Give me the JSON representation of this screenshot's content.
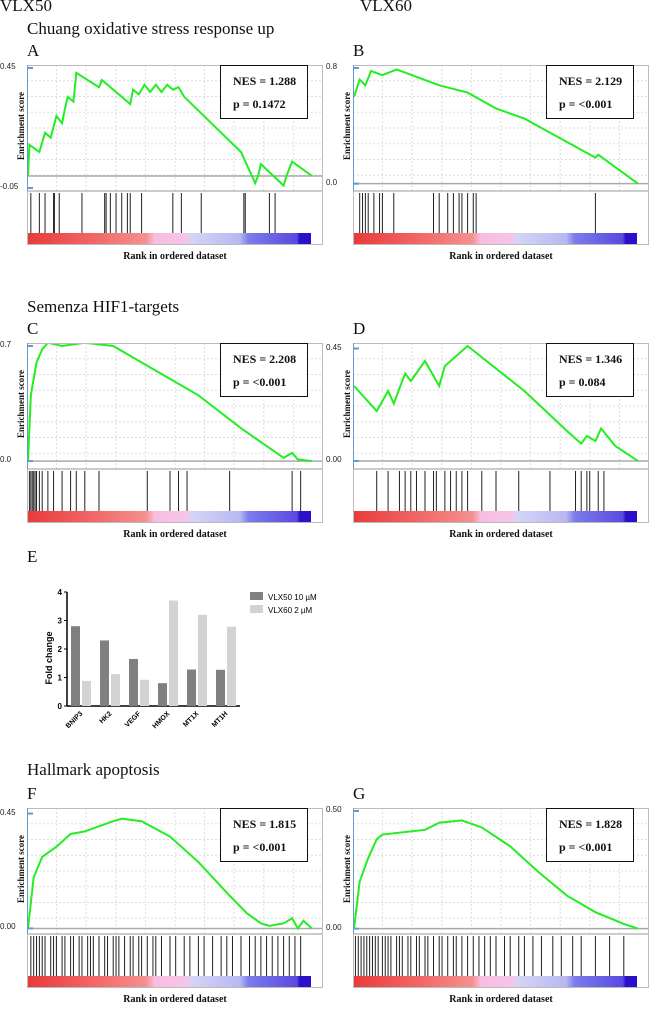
{
  "headers": {
    "vlx50": "VLX50",
    "vlx60": "VLX60",
    "row1": "Chuang oxidative stress response up",
    "row2": "Semenza HIF1-targets",
    "row3": "Hallmark apoptosis"
  },
  "axis": {
    "ylabel": "Enrichment score",
    "xlabel": "Rank in ordered dataset"
  },
  "chart_data": [
    {
      "type": "line",
      "panel": "A",
      "nes": "NES = 1.288",
      "p": "p = 0.1472",
      "ylim": [
        -0.05,
        0.45
      ],
      "yticks": [
        "0.45",
        "-0.05"
      ],
      "yticks_v": [
        0.45,
        -0.05
      ],
      "curve": [
        [
          0,
          0
        ],
        [
          0.005,
          0.13
        ],
        [
          0.04,
          0.1
        ],
        [
          0.06,
          0.18
        ],
        [
          0.08,
          0.16
        ],
        [
          0.1,
          0.25
        ],
        [
          0.12,
          0.22
        ],
        [
          0.13,
          0.28
        ],
        [
          0.14,
          0.33
        ],
        [
          0.16,
          0.31
        ],
        [
          0.17,
          0.43
        ],
        [
          0.25,
          0.37
        ],
        [
          0.26,
          0.4
        ],
        [
          0.36,
          0.3
        ],
        [
          0.37,
          0.36
        ],
        [
          0.39,
          0.34
        ],
        [
          0.41,
          0.38
        ],
        [
          0.43,
          0.35
        ],
        [
          0.45,
          0.38
        ],
        [
          0.47,
          0.35
        ],
        [
          0.49,
          0.38
        ],
        [
          0.51,
          0.36
        ],
        [
          0.53,
          0.37
        ],
        [
          0.55,
          0.33
        ],
        [
          0.75,
          0.1
        ],
        [
          0.8,
          -0.03
        ],
        [
          0.81,
          0.0
        ],
        [
          0.82,
          0.05
        ],
        [
          0.9,
          -0.04
        ],
        [
          0.91,
          0.0
        ],
        [
          0.92,
          0.03
        ],
        [
          0.93,
          0.06
        ],
        [
          1,
          0
        ]
      ],
      "hits": [
        0.01,
        0.04,
        0.06,
        0.09,
        0.093,
        0.11,
        0.19,
        0.27,
        0.275,
        0.29,
        0.31,
        0.33,
        0.35,
        0.36,
        0.4,
        0.51,
        0.54,
        0.61,
        0.76,
        0.765,
        0.85,
        0.87
      ]
    },
    {
      "type": "line",
      "panel": "B",
      "nes": "NES = 2.129",
      "p": "p = <0.001",
      "ylim": [
        -0.03,
        0.8
      ],
      "yticks": [
        "0.8",
        "0.0"
      ],
      "yticks_v": [
        0.8,
        0
      ],
      "curve": [
        [
          0,
          0.6
        ],
        [
          0.02,
          0.72
        ],
        [
          0.04,
          0.68
        ],
        [
          0.06,
          0.78
        ],
        [
          0.1,
          0.75
        ],
        [
          0.15,
          0.79
        ],
        [
          0.3,
          0.68
        ],
        [
          0.4,
          0.63
        ],
        [
          0.5,
          0.52
        ],
        [
          0.6,
          0.45
        ],
        [
          0.85,
          0.18
        ],
        [
          0.86,
          0.2
        ],
        [
          1,
          0
        ]
      ],
      "hits": [
        0.02,
        0.03,
        0.04,
        0.05,
        0.07,
        0.09,
        0.1,
        0.14,
        0.28,
        0.3,
        0.33,
        0.35,
        0.37,
        0.38,
        0.4,
        0.42,
        0.43,
        0.85
      ]
    },
    {
      "type": "line",
      "panel": "C",
      "nes": "NES = 2.208",
      "p": "p = <0.001",
      "ylim": [
        -0.03,
        0.7
      ],
      "yticks": [
        "0.7",
        "0.0"
      ],
      "yticks_v": [
        0.7,
        0
      ],
      "curve": [
        [
          0,
          0
        ],
        [
          0.01,
          0.4
        ],
        [
          0.03,
          0.6
        ],
        [
          0.05,
          0.68
        ],
        [
          0.07,
          0.72
        ],
        [
          0.12,
          0.7
        ],
        [
          0.2,
          0.72
        ],
        [
          0.3,
          0.7
        ],
        [
          0.42,
          0.58
        ],
        [
          0.6,
          0.4
        ],
        [
          0.75,
          0.2
        ],
        [
          0.9,
          0.02
        ],
        [
          0.93,
          0.05
        ],
        [
          0.95,
          0.01
        ],
        [
          1,
          0
        ]
      ],
      "hits": [
        0.005,
        0.01,
        0.015,
        0.02,
        0.025,
        0.03,
        0.04,
        0.05,
        0.07,
        0.09,
        0.12,
        0.15,
        0.17,
        0.2,
        0.25,
        0.42,
        0.5,
        0.53,
        0.56,
        0.71,
        0.93,
        0.96
      ]
    },
    {
      "type": "line",
      "panel": "D",
      "nes": "NES = 1.346",
      "p": "p = 0.084",
      "ylim": [
        -0.02,
        0.46
      ],
      "yticks": [
        "0.45",
        "0.00"
      ],
      "yticks_v": [
        0.45,
        0
      ],
      "curve": [
        [
          0,
          0.3
        ],
        [
          0.08,
          0.2
        ],
        [
          0.12,
          0.28
        ],
        [
          0.14,
          0.23
        ],
        [
          0.18,
          0.35
        ],
        [
          0.2,
          0.32
        ],
        [
          0.25,
          0.4
        ],
        [
          0.3,
          0.3
        ],
        [
          0.32,
          0.38
        ],
        [
          0.38,
          0.44
        ],
        [
          0.4,
          0.46
        ],
        [
          0.6,
          0.28
        ],
        [
          0.75,
          0.12
        ],
        [
          0.8,
          0.07
        ],
        [
          0.82,
          0.1
        ],
        [
          0.85,
          0.08
        ],
        [
          0.87,
          0.13
        ],
        [
          0.92,
          0.06
        ],
        [
          1,
          0
        ]
      ],
      "hits": [
        0.08,
        0.12,
        0.16,
        0.18,
        0.2,
        0.22,
        0.25,
        0.28,
        0.29,
        0.32,
        0.34,
        0.36,
        0.38,
        0.4,
        0.45,
        0.5,
        0.58,
        0.69,
        0.78,
        0.8,
        0.82,
        0.83,
        0.86,
        0.88
      ]
    },
    {
      "type": "line",
      "panel": "F",
      "nes": "NES = 1.815",
      "p": "p = <0.001",
      "ylim": [
        -0.01,
        0.46
      ],
      "yticks": [
        "0.45",
        "0.00"
      ],
      "yticks_v": [
        0.45,
        0
      ],
      "curve": [
        [
          0,
          0
        ],
        [
          0.02,
          0.2
        ],
        [
          0.05,
          0.28
        ],
        [
          0.1,
          0.32
        ],
        [
          0.15,
          0.37
        ],
        [
          0.2,
          0.38
        ],
        [
          0.3,
          0.42
        ],
        [
          0.33,
          0.43
        ],
        [
          0.4,
          0.42
        ],
        [
          0.5,
          0.36
        ],
        [
          0.6,
          0.26
        ],
        [
          0.7,
          0.14
        ],
        [
          0.77,
          0.06
        ],
        [
          0.82,
          0.02
        ],
        [
          0.85,
          0.01
        ],
        [
          0.9,
          0.02
        ],
        [
          0.93,
          0.04
        ],
        [
          0.95,
          0
        ],
        [
          0.97,
          0.03
        ],
        [
          1,
          0
        ]
      ],
      "hits": [
        0.01,
        0.02,
        0.03,
        0.04,
        0.05,
        0.06,
        0.08,
        0.09,
        0.1,
        0.12,
        0.13,
        0.15,
        0.16,
        0.18,
        0.19,
        0.21,
        0.22,
        0.23,
        0.25,
        0.27,
        0.28,
        0.3,
        0.31,
        0.32,
        0.34,
        0.36,
        0.37,
        0.39,
        0.4,
        0.42,
        0.44,
        0.45,
        0.47,
        0.5,
        0.52,
        0.55,
        0.57,
        0.6,
        0.62,
        0.65,
        0.68,
        0.7,
        0.72,
        0.75,
        0.78,
        0.8,
        0.82,
        0.84,
        0.86,
        0.88,
        0.9,
        0.92,
        0.94,
        0.96
      ]
    },
    {
      "type": "line",
      "panel": "G",
      "nes": "NES = 1.828",
      "p": "p = <0.001",
      "ylim": [
        -0.01,
        0.5
      ],
      "yticks": [
        "0.50",
        "0.00"
      ],
      "yticks_v": [
        0.5,
        0
      ],
      "curve": [
        [
          0,
          0
        ],
        [
          0.02,
          0.2
        ],
        [
          0.05,
          0.3
        ],
        [
          0.08,
          0.38
        ],
        [
          0.1,
          0.4
        ],
        [
          0.25,
          0.42
        ],
        [
          0.3,
          0.45
        ],
        [
          0.38,
          0.46
        ],
        [
          0.45,
          0.43
        ],
        [
          0.55,
          0.35
        ],
        [
          0.65,
          0.24
        ],
        [
          0.75,
          0.14
        ],
        [
          0.85,
          0.07
        ],
        [
          0.95,
          0.02
        ],
        [
          1,
          0
        ]
      ],
      "hits": [
        0.005,
        0.015,
        0.025,
        0.035,
        0.045,
        0.055,
        0.065,
        0.075,
        0.085,
        0.1,
        0.11,
        0.12,
        0.13,
        0.15,
        0.16,
        0.17,
        0.19,
        0.2,
        0.22,
        0.23,
        0.25,
        0.26,
        0.28,
        0.3,
        0.31,
        0.33,
        0.35,
        0.36,
        0.38,
        0.4,
        0.42,
        0.44,
        0.46,
        0.48,
        0.5,
        0.53,
        0.55,
        0.58,
        0.6,
        0.63,
        0.66,
        0.7,
        0.73,
        0.77,
        0.8,
        0.85,
        0.9,
        0.95
      ]
    },
    {
      "type": "bar",
      "panel": "E",
      "ylabel": "Fold change",
      "ylim": [
        0,
        4
      ],
      "yticks": [
        "0",
        "1",
        "2",
        "3",
        "4"
      ],
      "categories": [
        "BNIP3",
        "HK2",
        "VEGF",
        "HMOX",
        "MT1X",
        "MT1H"
      ],
      "series": [
        {
          "name": "VLX50 10 µM",
          "color": "#808080",
          "values": [
            2.8,
            2.3,
            1.65,
            0.8,
            1.28,
            1.27
          ]
        },
        {
          "name": "VLX60 2 µM",
          "color": "#d3d3d3",
          "values": [
            0.88,
            1.12,
            0.92,
            3.7,
            3.2,
            2.78
          ]
        }
      ]
    }
  ],
  "colors": {
    "curve": "#22ee22"
  }
}
